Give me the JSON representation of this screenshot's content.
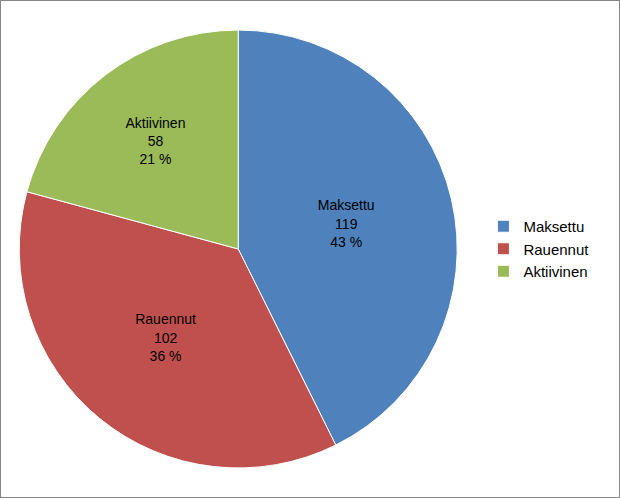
{
  "chart_data": {
    "type": "pie",
    "categories": [
      "Maksettu",
      "Rauennut",
      "Aktiivinen"
    ],
    "values": [
      119,
      102,
      58
    ],
    "percentages": [
      43,
      36,
      21
    ],
    "percent_labels": [
      "43 %",
      "36 %",
      "21 %"
    ],
    "colors": [
      "#4f81bd",
      "#c0504d",
      "#9bbb59"
    ],
    "data_labels": true,
    "legend": "right"
  }
}
